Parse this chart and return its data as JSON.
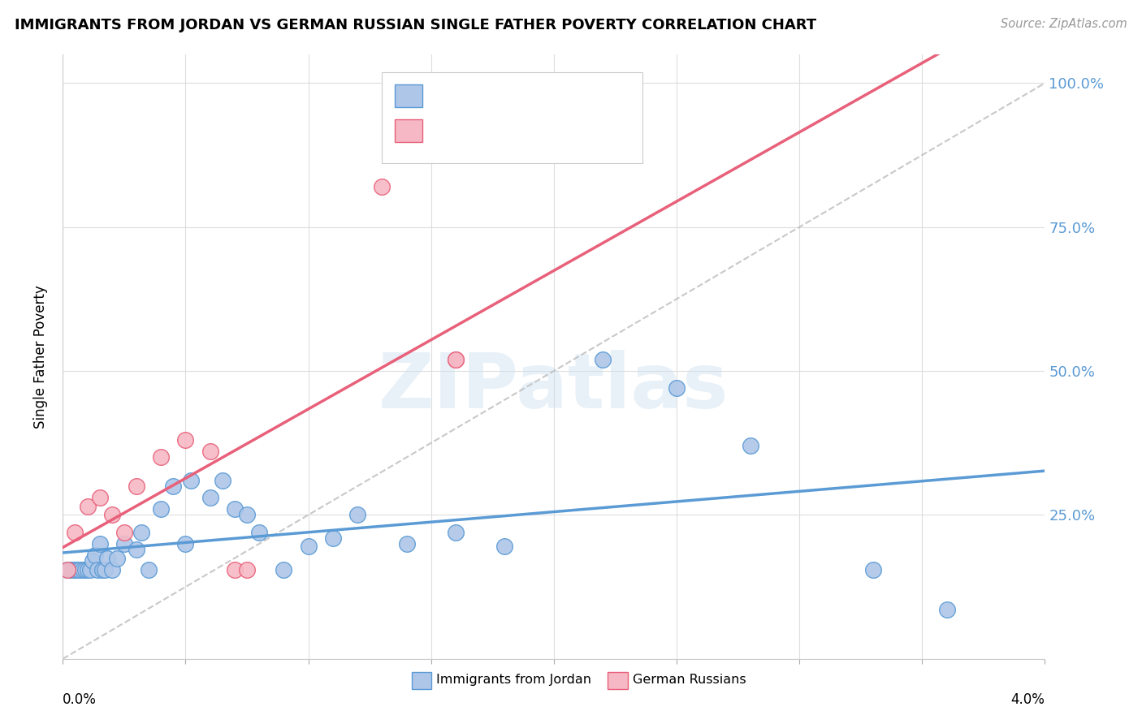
{
  "title": "IMMIGRANTS FROM JORDAN VS GERMAN RUSSIAN SINGLE FATHER POVERTY CORRELATION CHART",
  "source": "Source: ZipAtlas.com",
  "ylabel": "Single Father Poverty",
  "color_jordan": "#aec6e8",
  "color_jordan_line": "#5b9bd5",
  "color_german": "#f5b8c4",
  "color_german_line": "#e8607a",
  "color_diagonal": "#bbbbbb",
  "color_grid": "#dddddd",
  "watermark": "ZIPatlas",
  "xmin": 0.0,
  "xmax": 0.04,
  "ymin": 0.0,
  "ymax": 1.05,
  "jordan_x": [
    0.0002,
    0.0003,
    0.0004,
    0.0005,
    0.0006,
    0.0007,
    0.0008,
    0.0009,
    0.001,
    0.0011,
    0.0012,
    0.0013,
    0.0014,
    0.0015,
    0.0016,
    0.0017,
    0.0018,
    0.002,
    0.0022,
    0.0025,
    0.003,
    0.0032,
    0.0035,
    0.004,
    0.0045,
    0.005,
    0.0052,
    0.006,
    0.0065,
    0.007,
    0.0075,
    0.008,
    0.009,
    0.01,
    0.011,
    0.012,
    0.014,
    0.016,
    0.018,
    0.022,
    0.025,
    0.028,
    0.033,
    0.036
  ],
  "jordan_y": [
    0.155,
    0.155,
    0.155,
    0.155,
    0.155,
    0.155,
    0.155,
    0.155,
    0.155,
    0.155,
    0.17,
    0.18,
    0.155,
    0.2,
    0.155,
    0.155,
    0.175,
    0.155,
    0.175,
    0.2,
    0.19,
    0.22,
    0.155,
    0.26,
    0.3,
    0.2,
    0.31,
    0.28,
    0.31,
    0.26,
    0.25,
    0.22,
    0.155,
    0.195,
    0.21,
    0.25,
    0.2,
    0.22,
    0.195,
    0.52,
    0.47,
    0.37,
    0.155,
    0.085
  ],
  "german_x": [
    0.0002,
    0.0005,
    0.001,
    0.0015,
    0.002,
    0.0025,
    0.003,
    0.004,
    0.005,
    0.006,
    0.007,
    0.0075,
    0.013,
    0.016,
    0.016
  ],
  "german_y": [
    0.155,
    0.22,
    0.265,
    0.28,
    0.25,
    0.22,
    0.3,
    0.35,
    0.38,
    0.36,
    0.155,
    0.155,
    0.82,
    0.52,
    0.52
  ]
}
